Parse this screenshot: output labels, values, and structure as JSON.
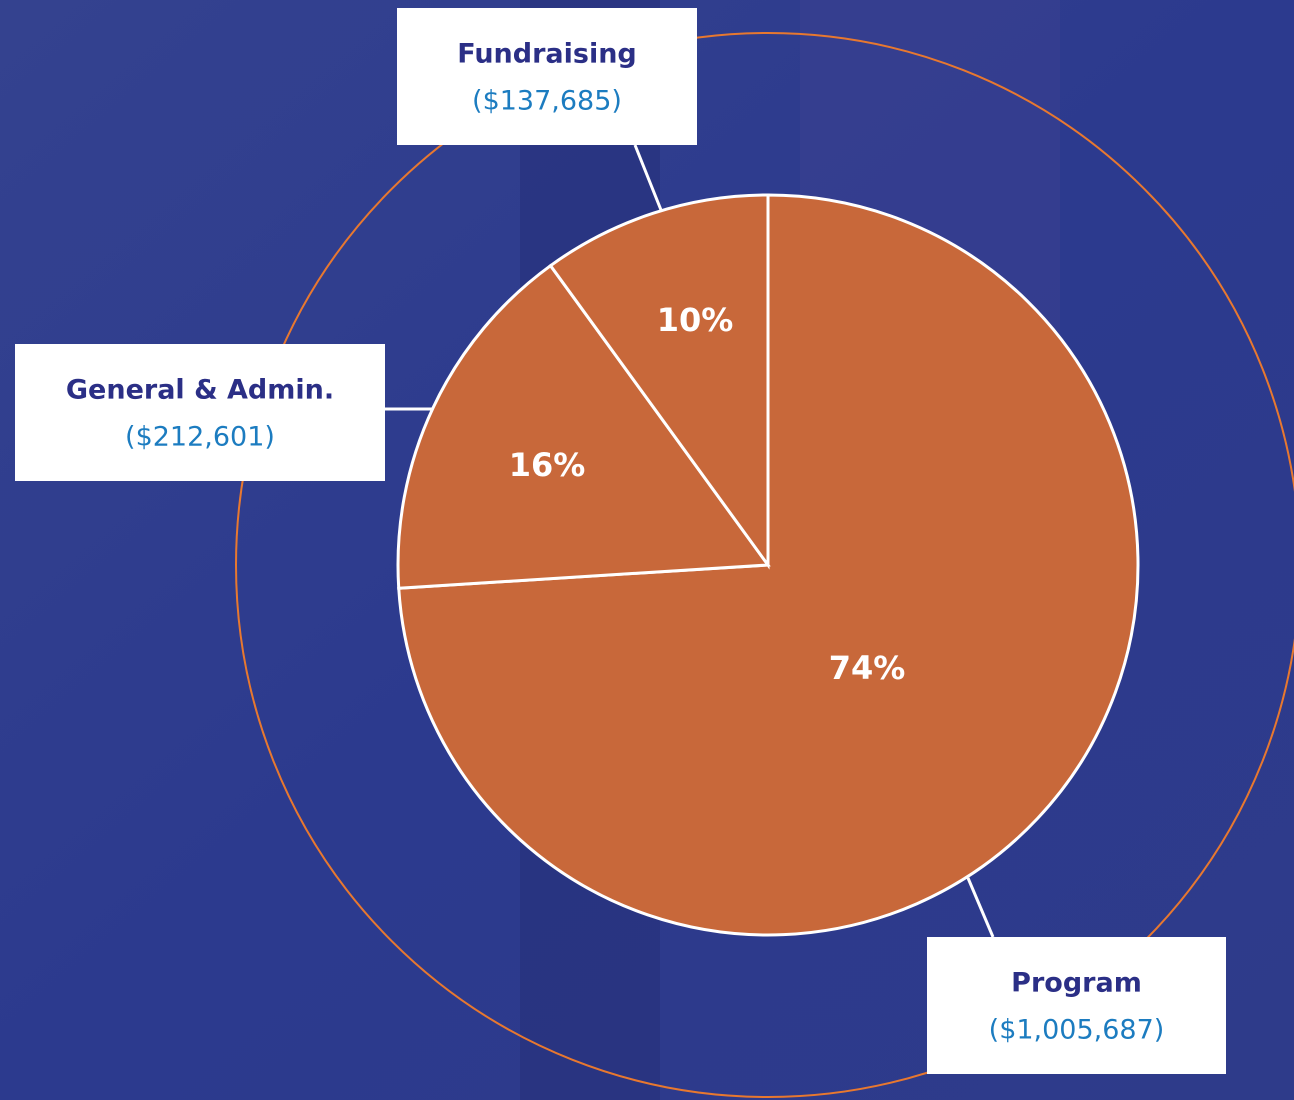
{
  "chart_data": {
    "type": "pie",
    "categories": [
      "Program",
      "General & Admin.",
      "Fundraising"
    ],
    "values": [
      74,
      16,
      10
    ],
    "value_labels": [
      "74%",
      "16%",
      "10%"
    ],
    "amount_labels": [
      "($1,005,687)",
      "($212,601)",
      "($137,685)"
    ],
    "color": "#c8683a"
  }
}
